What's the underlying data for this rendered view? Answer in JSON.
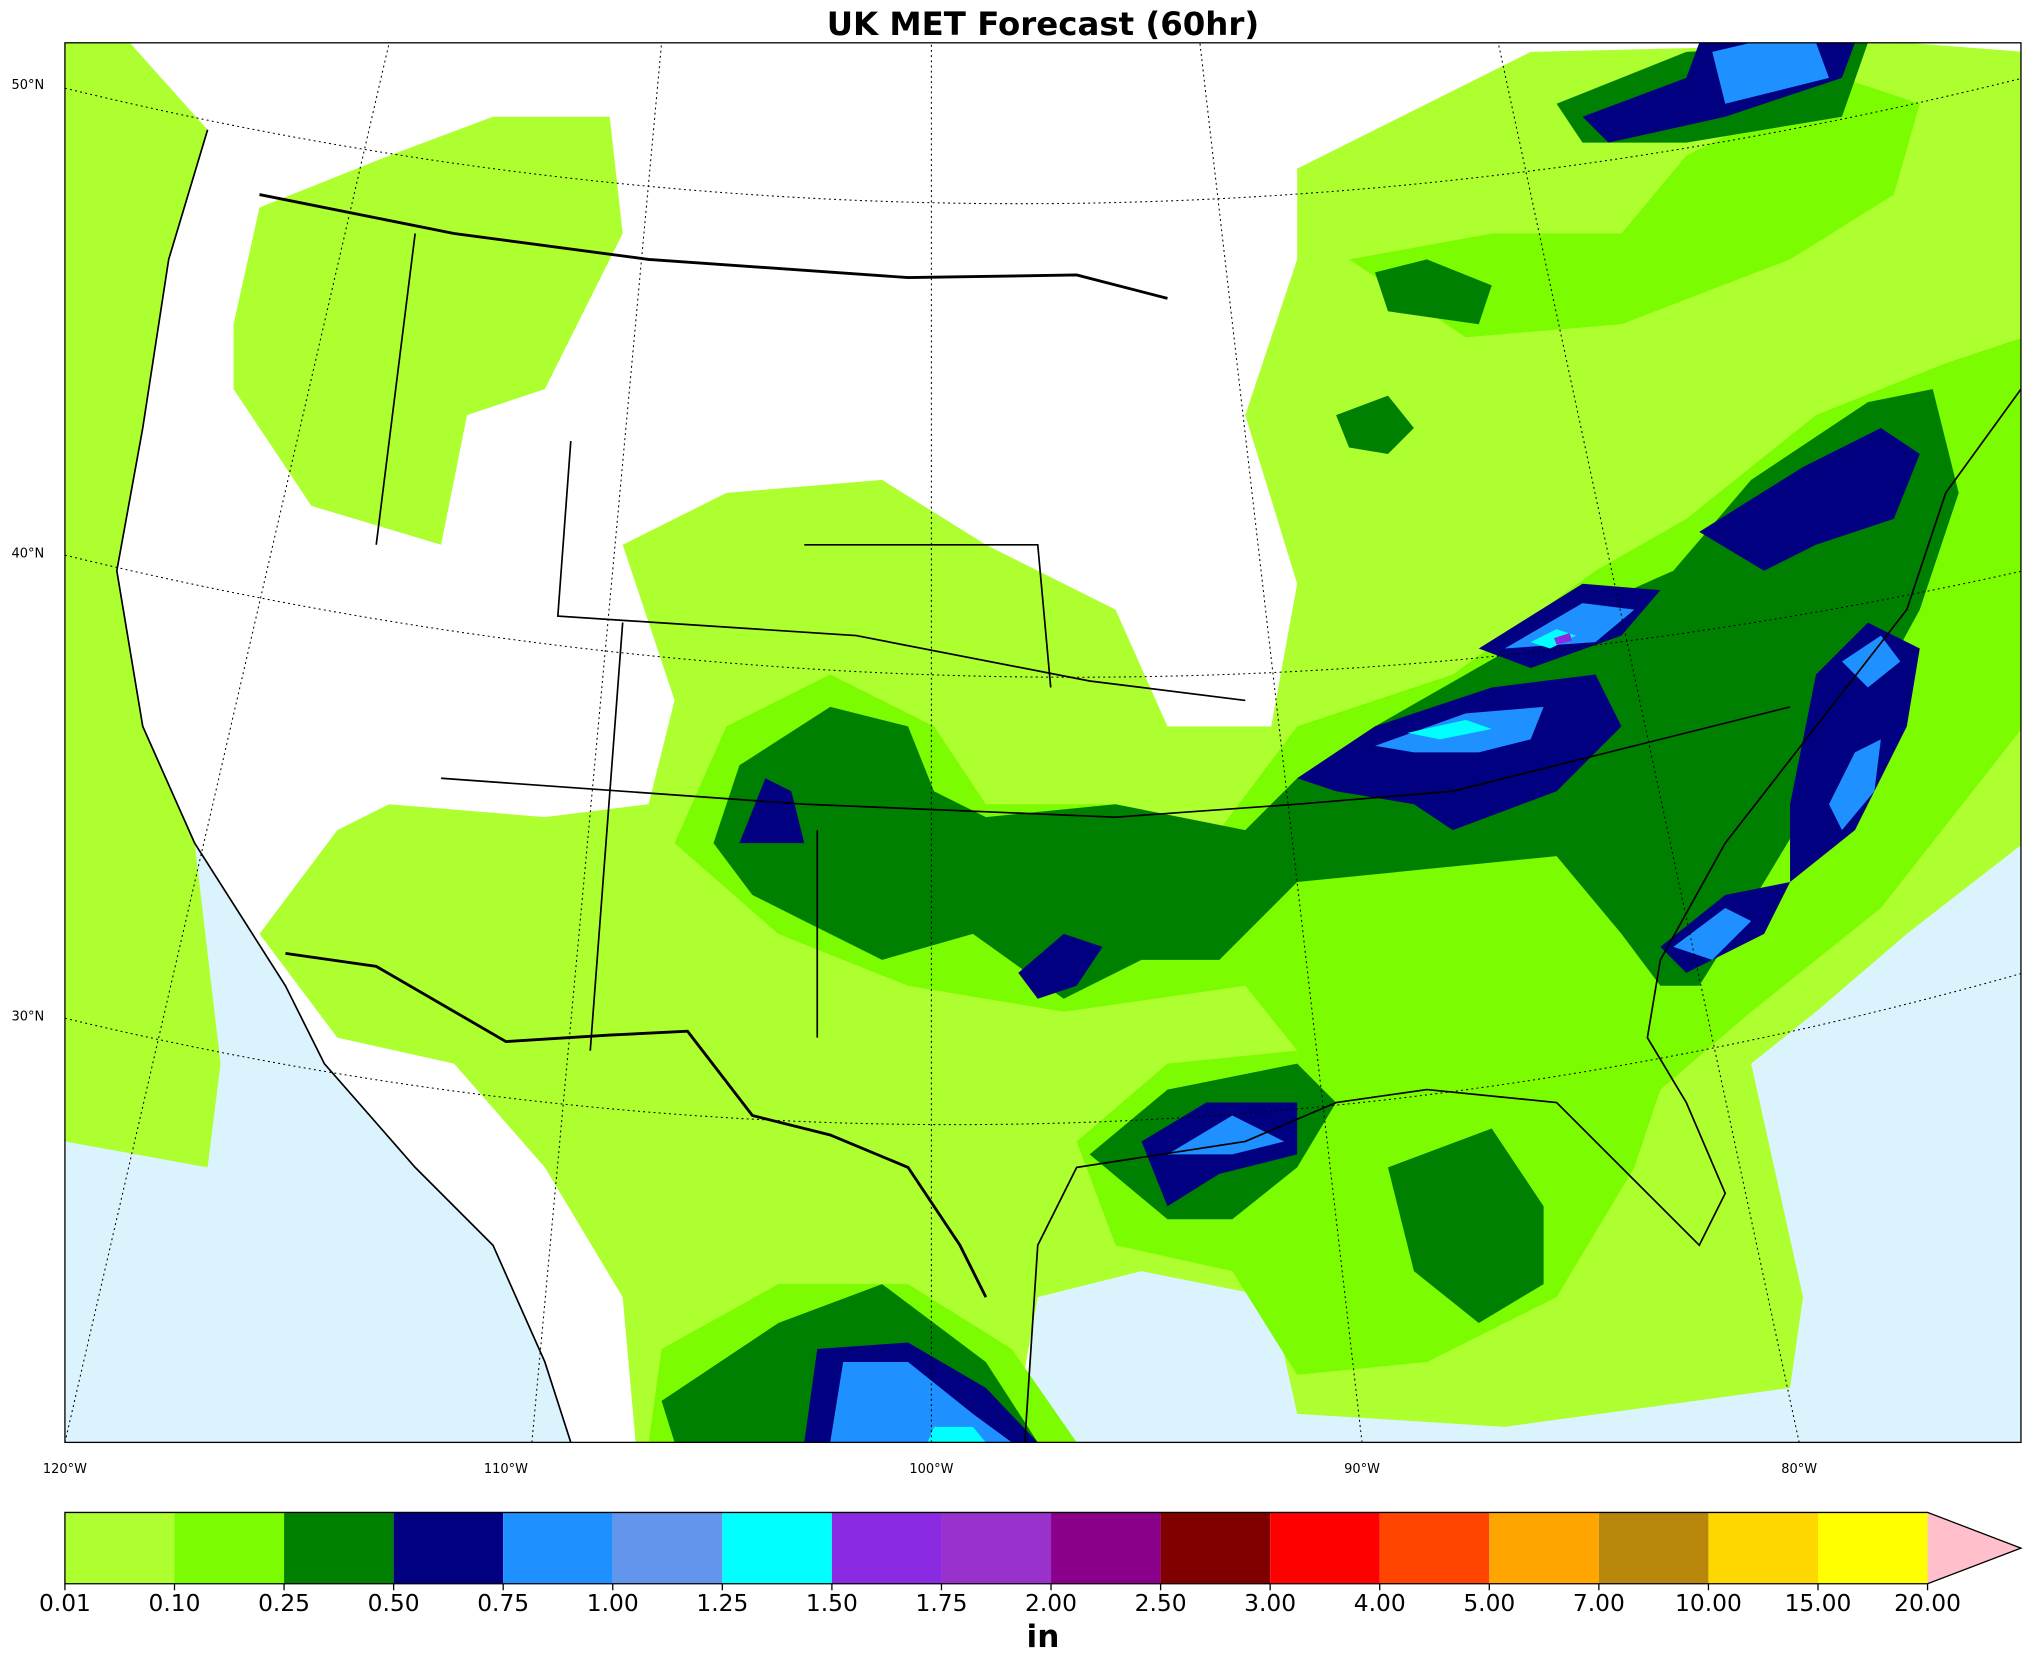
{
  "title": "UK MET Forecast (60hr)",
  "map": {
    "lat_labels": [
      "50°N",
      "40°N",
      "30°N"
    ],
    "lon_labels": [
      "120°W",
      "110°W",
      "100°W",
      "90°W",
      "80°W"
    ]
  },
  "colorbar": {
    "label": "in",
    "levels": [
      {
        "value": 0.01,
        "label": "0.01"
      },
      {
        "value": 0.1,
        "label": "0.10"
      },
      {
        "value": 0.25,
        "label": "0.25"
      },
      {
        "value": 0.5,
        "label": "0.50"
      },
      {
        "value": 0.75,
        "label": "0.75"
      },
      {
        "value": 1,
        "label": "1.00"
      },
      {
        "value": 1.25,
        "label": "1.25"
      },
      {
        "value": 1.5,
        "label": "1.50"
      },
      {
        "value": 1.75,
        "label": "1.75"
      },
      {
        "value": 2,
        "label": "2.00"
      },
      {
        "value": 2.5,
        "label": "2.50"
      },
      {
        "value": 3,
        "label": "3.00"
      },
      {
        "value": 4,
        "label": "4.00"
      },
      {
        "value": 5,
        "label": "5.00"
      },
      {
        "value": 7,
        "label": "7.00"
      },
      {
        "value": 10,
        "label": "10.00"
      },
      {
        "value": 15,
        "label": "15.00"
      },
      {
        "value": 20,
        "label": "20.00"
      }
    ],
    "colors": [
      "#adff2f",
      "#7cfc00",
      "#008000",
      "#000080",
      "#1e90ff",
      "#6495ed",
      "#00ffff",
      "#8a2be2",
      "#9932cc",
      "#8b008b",
      "#800000",
      "#ff0000",
      "#ff4500",
      "#ffa500",
      "#b8860b",
      "#ffd700",
      "#ffff00"
    ],
    "extend_color": "#ffc0cb"
  }
}
